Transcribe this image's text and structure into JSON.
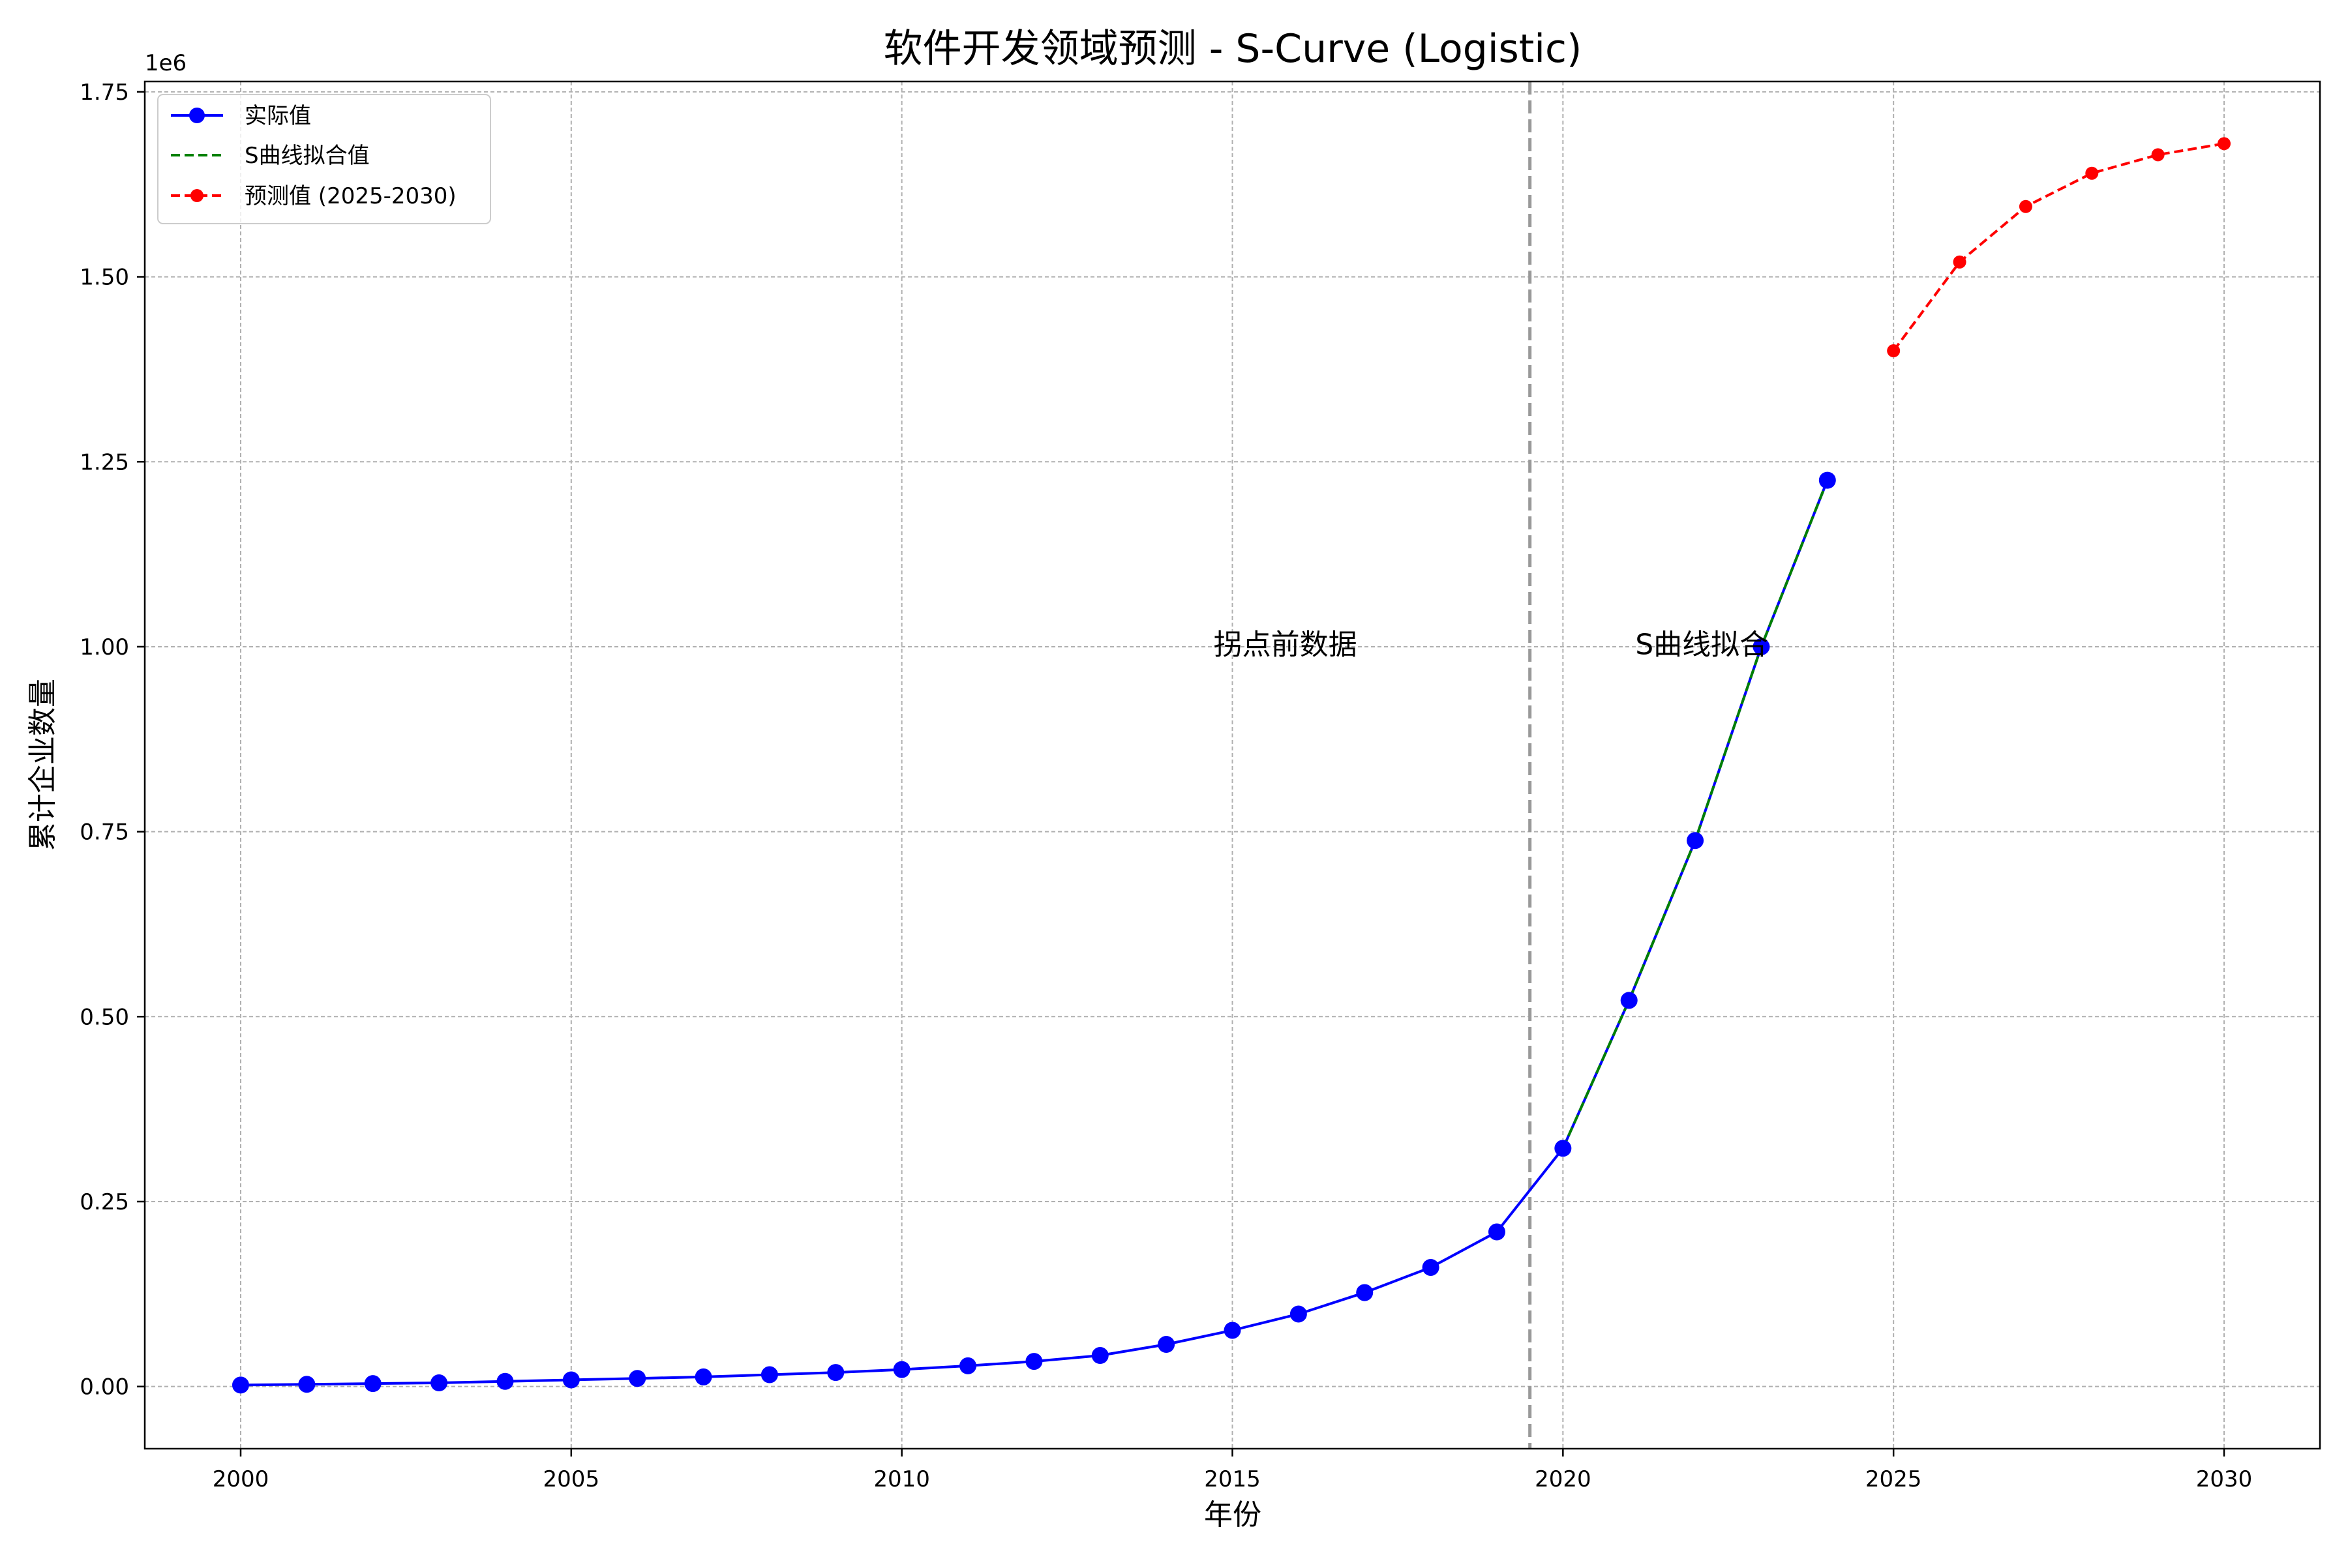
{
  "chart_data": {
    "type": "line",
    "title": "软件开发领域预测 - S-Curve (Logistic)",
    "xlabel": "年份",
    "ylabel": "累计企业数量",
    "y_offset_label": "1e6",
    "xlim": [
      1998.55,
      2031.45
    ],
    "ylim": [
      -0.084,
      1.764
    ],
    "x_ticks": [
      2000,
      2005,
      2010,
      2015,
      2020,
      2025,
      2030
    ],
    "x_tick_labels": [
      "2000",
      "2005",
      "2010",
      "2015",
      "2020",
      "2025",
      "2030"
    ],
    "y_ticks": [
      0.0,
      0.25,
      0.5,
      0.75,
      1.0,
      1.25,
      1.5,
      1.75
    ],
    "y_tick_labels": [
      "0.00",
      "0.25",
      "0.50",
      "0.75",
      "1.00",
      "1.25",
      "1.50",
      "1.75"
    ],
    "grid": true,
    "legend_position": "top-left",
    "series": [
      {
        "name": "实际值",
        "color": "#0000ff",
        "style": "solid",
        "marker": "circle",
        "x": [
          2000,
          2001,
          2002,
          2003,
          2004,
          2005,
          2006,
          2007,
          2008,
          2009,
          2010,
          2011,
          2012,
          2013,
          2014,
          2015,
          2016,
          2017,
          2018,
          2019,
          2020,
          2021,
          2022,
          2023,
          2024
        ],
        "y": [
          0.002,
          0.003,
          0.004,
          0.005,
          0.007,
          0.009,
          0.011,
          0.013,
          0.016,
          0.019,
          0.023,
          0.028,
          0.034,
          0.042,
          0.057,
          0.076,
          0.098,
          0.127,
          0.161,
          0.209,
          0.322,
          0.522,
          0.738,
          1.0,
          1.225
        ]
      },
      {
        "name": "S曲线拟合值",
        "color": "#008000",
        "style": "dashed",
        "marker": "none",
        "x": [
          2020,
          2021,
          2022,
          2023,
          2024
        ],
        "y": [
          0.322,
          0.522,
          0.738,
          1.0,
          1.225
        ]
      },
      {
        "name": "预测值 (2025-2030)",
        "color": "#ff0000",
        "style": "dashed",
        "marker": "circle-small",
        "x": [
          2025,
          2026,
          2027,
          2028,
          2029,
          2030
        ],
        "y": [
          1.4,
          1.52,
          1.595,
          1.64,
          1.665,
          1.68
        ]
      }
    ],
    "vertical_line": {
      "x": 2019.5,
      "color": "#999999",
      "style": "dashed"
    },
    "annotations": [
      {
        "text": "拐点前数据",
        "x": 2015.8,
        "y": 0.99
      },
      {
        "text": "S曲线拟合",
        "x": 2022.1,
        "y": 0.99
      }
    ]
  }
}
